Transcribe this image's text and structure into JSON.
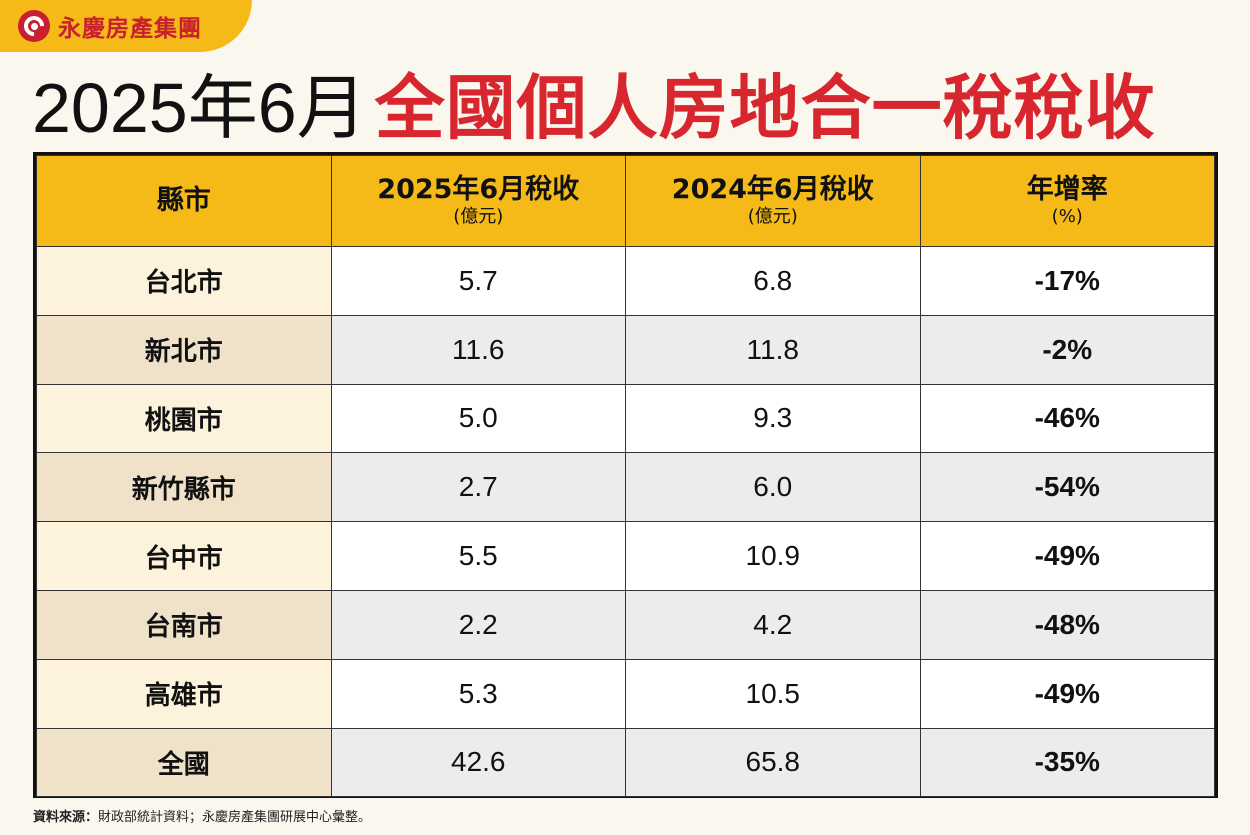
{
  "brand": {
    "name": "永慶房產集團",
    "color": "#c8202f",
    "icon": "yungching-logo-icon"
  },
  "title": {
    "prefix": "2025年6月",
    "highlight": "全國個人房地合一稅稅收"
  },
  "colors": {
    "header_bg": "#f5ba18",
    "title_red": "#d8262f"
  },
  "chart_data": {
    "type": "table",
    "columns": [
      {
        "label": "縣市",
        "unit": ""
      },
      {
        "label": "2025年6月稅收",
        "unit": "(億元)"
      },
      {
        "label": "2024年6月稅收",
        "unit": "(億元)"
      },
      {
        "label": "年增率",
        "unit": "(%)"
      }
    ],
    "rows": [
      {
        "county": "台北市",
        "v2025": "5.7",
        "v2024": "6.8",
        "rate": "-17%"
      },
      {
        "county": "新北市",
        "v2025": "11.6",
        "v2024": "11.8",
        "rate": "-2%"
      },
      {
        "county": "桃園市",
        "v2025": "5.0",
        "v2024": "9.3",
        "rate": "-46%"
      },
      {
        "county": "新竹縣市",
        "v2025": "2.7",
        "v2024": "6.0",
        "rate": "-54%"
      },
      {
        "county": "台中市",
        "v2025": "5.5",
        "v2024": "10.9",
        "rate": "-49%"
      },
      {
        "county": "台南市",
        "v2025": "2.2",
        "v2024": "4.2",
        "rate": "-48%"
      },
      {
        "county": "高雄市",
        "v2025": "5.3",
        "v2024": "10.5",
        "rate": "-49%"
      },
      {
        "county": "全國",
        "v2025": "42.6",
        "v2024": "65.8",
        "rate": "-35%"
      }
    ]
  },
  "source": {
    "label": "資料來源：",
    "text": "財政部統計資料；永慶房產集團研展中心彙整。"
  }
}
